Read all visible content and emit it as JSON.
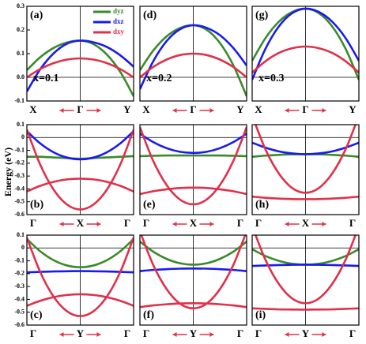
{
  "ylabel": "Energy (eV)",
  "chart_data": [
    {
      "type": "line",
      "panel_label": "(a)",
      "annotation": "x=0.1",
      "legend": "upper right",
      "x": [
        -1,
        -0.75,
        -0.5,
        -0.25,
        0,
        0.25,
        0.5,
        0.75,
        1
      ],
      "xlim": [
        -1,
        1
      ],
      "xticks": [
        {
          "value": -1,
          "label": "X"
        },
        {
          "value": 0,
          "label": "Γ"
        },
        {
          "value": 1,
          "label": "Y"
        }
      ],
      "ylim": [
        -0.1,
        0.3
      ],
      "yticks": [
        0.3,
        0.2,
        0.1,
        {
          "value": 0,
          "label": "0.0"
        },
        -0.1
      ],
      "series": [
        {
          "name": "dyz",
          "color": "#3a8a2a",
          "values": [
            0.03,
            0.085,
            0.124,
            0.147,
            0.155,
            0.14,
            0.096,
            0.023,
            -0.08
          ]
        },
        {
          "name": "dxz",
          "color": "#1a1aee",
          "values": [
            -0.06,
            0.034,
            0.101,
            0.142,
            0.155,
            0.148,
            0.128,
            0.093,
            0.045
          ]
        },
        {
          "name": "dxy",
          "color": "#e0304a",
          "values": [
            0,
            0.035,
            0.06,
            0.075,
            0.08,
            0.075,
            0.06,
            0.035,
            0
          ]
        }
      ]
    },
    {
      "type": "line",
      "panel_label": "(d)",
      "annotation": "x=0.2",
      "x": [
        -1,
        -0.75,
        -0.5,
        -0.25,
        0,
        0.25,
        0.5,
        0.75,
        1
      ],
      "xlim": [
        -1,
        1
      ],
      "xticks": [
        {
          "value": -1,
          "label": "X"
        },
        {
          "value": 0,
          "label": "Γ"
        },
        {
          "value": 1,
          "label": "Y"
        }
      ],
      "ylim": [
        -0.1,
        0.3
      ],
      "series": [
        {
          "name": "dyz",
          "color": "#3a8a2a",
          "values": [
            0.03,
            0.113,
            0.173,
            0.208,
            0.22,
            0.201,
            0.145,
            0.051,
            -0.08
          ]
        },
        {
          "name": "dxz",
          "color": "#1a1aee",
          "values": [
            -0.05,
            0.068,
            0.153,
            0.203,
            0.22,
            0.209,
            0.178,
            0.124,
            0.05
          ]
        },
        {
          "name": "dxy",
          "color": "#e0304a",
          "values": [
            0,
            0.044,
            0.075,
            0.094,
            0.1,
            0.094,
            0.075,
            0.044,
            0
          ]
        }
      ]
    },
    {
      "type": "line",
      "panel_label": "(g)",
      "annotation": "x=0.3",
      "x": [
        -1,
        -0.75,
        -0.5,
        -0.25,
        0,
        0.25,
        0.5,
        0.75,
        1
      ],
      "xlim": [
        -1,
        1
      ],
      "xticks": [
        {
          "value": -1,
          "label": "X"
        },
        {
          "value": 0,
          "label": "Γ"
        },
        {
          "value": 1,
          "label": "Y"
        }
      ],
      "ylim": [
        -0.1,
        0.3
      ],
      "series": [
        {
          "name": "dyz",
          "color": "#3a8a2a",
          "values": [
            0.07,
            0.166,
            0.235,
            0.276,
            0.29,
            0.271,
            0.215,
            0.121,
            -0.01
          ]
        },
        {
          "name": "dxz",
          "color": "#1a1aee",
          "values": [
            -0.01,
            0.121,
            0.215,
            0.271,
            0.29,
            0.276,
            0.235,
            0.166,
            0.07
          ]
        },
        {
          "name": "dxy",
          "color": "#e0304a",
          "values": [
            0.02,
            0.068,
            0.103,
            0.123,
            0.13,
            0.123,
            0.103,
            0.068,
            0.02
          ]
        }
      ]
    },
    {
      "type": "line",
      "panel_label": "(b)",
      "x": [
        -1,
        -0.75,
        -0.5,
        -0.25,
        0,
        0.25,
        0.5,
        0.75,
        1
      ],
      "xlim": [
        -1,
        1
      ],
      "xticks": [
        {
          "value": -1,
          "label": "Γ"
        },
        {
          "value": 0,
          "label": "X"
        },
        {
          "value": 1,
          "label": "Γ"
        }
      ],
      "ylim": [
        -0.6,
        0.1
      ],
      "yticks": [
        0.1,
        0,
        -0.1,
        -0.2,
        -0.3,
        -0.4,
        -0.5,
        -0.6
      ],
      "series": [
        {
          "name": "dyz",
          "color": "#3a8a2a",
          "values": [
            -0.15,
            -0.15,
            -0.155,
            -0.16,
            -0.165,
            -0.16,
            -0.155,
            -0.15,
            -0.145
          ]
        },
        {
          "name": "dxz",
          "color": "#1a1aee",
          "values": [
            0.05,
            -0.046,
            -0.115,
            -0.156,
            -0.17,
            -0.156,
            -0.115,
            -0.046,
            0.05
          ]
        },
        {
          "name": "dxy",
          "color": "#e0304a",
          "values": [
            -0.42,
            -0.376,
            -0.345,
            -0.326,
            -0.32,
            -0.326,
            -0.345,
            -0.376,
            -0.42
          ]
        },
        {
          "name": "dxy",
          "color": "#e0304a",
          "values": [
            0.06,
            -0.211,
            -0.405,
            -0.521,
            -0.56,
            -0.521,
            -0.405,
            -0.211,
            0.06
          ]
        }
      ]
    },
    {
      "type": "line",
      "panel_label": "(e)",
      "x": [
        -1,
        -0.75,
        -0.5,
        -0.25,
        0,
        0.25,
        0.5,
        0.75,
        1
      ],
      "xlim": [
        -1,
        1
      ],
      "xticks": [
        {
          "value": -1,
          "label": "Γ"
        },
        {
          "value": 0,
          "label": "X"
        },
        {
          "value": 1,
          "label": "Γ"
        }
      ],
      "ylim": [
        -0.6,
        0.1
      ],
      "series": [
        {
          "name": "dyz",
          "color": "#3a8a2a",
          "values": [
            -0.145,
            -0.142,
            -0.14,
            -0.14,
            -0.14,
            -0.14,
            -0.14,
            -0.142,
            -0.145
          ]
        },
        {
          "name": "dxz",
          "color": "#1a1aee",
          "values": [
            0.03,
            -0.036,
            -0.083,
            -0.111,
            -0.12,
            -0.111,
            -0.083,
            -0.036,
            0.03
          ]
        },
        {
          "name": "dxy",
          "color": "#e0304a",
          "values": [
            -0.44,
            -0.418,
            -0.403,
            -0.393,
            -0.39,
            -0.393,
            -0.403,
            -0.418,
            -0.44
          ]
        },
        {
          "name": "dxy",
          "color": "#e0304a",
          "values": [
            0.08,
            -0.183,
            -0.37,
            -0.483,
            -0.52,
            -0.483,
            -0.37,
            -0.183,
            0.08
          ]
        }
      ]
    },
    {
      "type": "line",
      "panel_label": "(h)",
      "x": [
        -1,
        -0.75,
        -0.5,
        -0.25,
        0,
        0.25,
        0.5,
        0.75,
        1
      ],
      "xlim": [
        -1,
        1
      ],
      "xticks": [
        {
          "value": -1,
          "label": "Γ"
        },
        {
          "value": 0,
          "label": "X"
        },
        {
          "value": 1,
          "label": "Γ"
        }
      ],
      "ylim": [
        -0.6,
        0.1
      ],
      "series": [
        {
          "name": "dyz",
          "color": "#3a8a2a",
          "values": [
            -0.15,
            -0.141,
            -0.135,
            -0.131,
            -0.13,
            -0.131,
            -0.135,
            -0.141,
            -0.15
          ]
        },
        {
          "name": "dxz",
          "color": "#1a1aee",
          "values": [
            -0.04,
            -0.079,
            -0.108,
            -0.124,
            -0.13,
            -0.124,
            -0.108,
            -0.079,
            -0.04
          ]
        },
        {
          "name": "dxy",
          "color": "#e0304a",
          "values": [
            -0.46,
            -0.469,
            -0.475,
            -0.479,
            -0.48,
            -0.479,
            -0.475,
            -0.469,
            -0.46
          ]
        },
        {
          "name": "dxy",
          "color": "#e0304a",
          "values": [
            0.17,
            -0.093,
            -0.28,
            -0.393,
            -0.43,
            -0.393,
            -0.28,
            -0.093,
            0.17
          ]
        }
      ]
    },
    {
      "type": "line",
      "panel_label": "(c)",
      "x": [
        -1,
        -0.75,
        -0.5,
        -0.25,
        0,
        0.25,
        0.5,
        0.75,
        1
      ],
      "xlim": [
        -1,
        1
      ],
      "xticks": [
        {
          "value": -1,
          "label": "Γ"
        },
        {
          "value": 0,
          "label": "Y"
        },
        {
          "value": 1,
          "label": "Γ"
        }
      ],
      "ylim": [
        -0.6,
        0.1
      ],
      "yticks": [
        0.1,
        0,
        -0.1,
        -0.2,
        -0.3,
        -0.4,
        -0.5,
        -0.6
      ],
      "series": [
        {
          "name": "dyz",
          "color": "#3a8a2a",
          "values": [
            0.07,
            -0.026,
            -0.095,
            -0.136,
            -0.15,
            -0.136,
            -0.095,
            -0.026,
            0.07
          ]
        },
        {
          "name": "dxz",
          "color": "#1a1aee",
          "values": [
            -0.19,
            -0.186,
            -0.183,
            -0.181,
            -0.18,
            -0.181,
            -0.183,
            -0.186,
            -0.19
          ]
        },
        {
          "name": "dxy",
          "color": "#e0304a",
          "values": [
            -0.45,
            -0.411,
            -0.383,
            -0.366,
            -0.36,
            -0.366,
            -0.383,
            -0.411,
            -0.45
          ]
        },
        {
          "name": "dxy",
          "color": "#e0304a",
          "values": [
            0.08,
            -0.187,
            -0.378,
            -0.492,
            -0.53,
            -0.492,
            -0.378,
            -0.187,
            0.08
          ]
        }
      ]
    },
    {
      "type": "line",
      "panel_label": "(f)",
      "x": [
        -1,
        -0.75,
        -0.5,
        -0.25,
        0,
        0.25,
        0.5,
        0.75,
        1
      ],
      "xlim": [
        -1,
        1
      ],
      "xticks": [
        {
          "value": -1,
          "label": "Γ"
        },
        {
          "value": 0,
          "label": "Y"
        },
        {
          "value": 1,
          "label": "Γ"
        }
      ],
      "ylim": [
        -0.6,
        0.1
      ],
      "series": [
        {
          "name": "dyz",
          "color": "#3a8a2a",
          "values": [
            0.05,
            -0.029,
            -0.085,
            -0.119,
            -0.13,
            -0.119,
            -0.085,
            -0.029,
            0.05
          ]
        },
        {
          "name": "dxz",
          "color": "#1a1aee",
          "values": [
            -0.18,
            -0.171,
            -0.165,
            -0.161,
            -0.16,
            -0.161,
            -0.165,
            -0.171,
            -0.18
          ]
        },
        {
          "name": "dxy",
          "color": "#e0304a",
          "values": [
            -0.46,
            -0.447,
            -0.438,
            -0.432,
            -0.43,
            -0.432,
            -0.438,
            -0.447,
            -0.46
          ]
        },
        {
          "name": "dxy",
          "color": "#e0304a",
          "values": [
            0.13,
            -0.133,
            -0.32,
            -0.433,
            -0.47,
            -0.433,
            -0.32,
            -0.133,
            0.13
          ]
        }
      ]
    },
    {
      "type": "line",
      "panel_label": "(i)",
      "x": [
        -1,
        -0.75,
        -0.5,
        -0.25,
        0,
        0.25,
        0.5,
        0.75,
        1
      ],
      "xlim": [
        -1,
        1
      ],
      "xticks": [
        {
          "value": -1,
          "label": "Γ"
        },
        {
          "value": 0,
          "label": "Y"
        },
        {
          "value": 1,
          "label": "Γ"
        }
      ],
      "ylim": [
        -0.6,
        0.1
      ],
      "series": [
        {
          "name": "dyz",
          "color": "#3a8a2a",
          "values": [
            -0.01,
            -0.063,
            -0.1,
            -0.123,
            -0.13,
            -0.123,
            -0.1,
            -0.063,
            -0.01
          ]
        },
        {
          "name": "dxz",
          "color": "#1a1aee",
          "values": [
            -0.14,
            -0.136,
            -0.133,
            -0.131,
            -0.13,
            -0.131,
            -0.133,
            -0.136,
            -0.14
          ]
        },
        {
          "name": "dxy",
          "color": "#e0304a",
          "values": [
            -0.47,
            -0.474,
            -0.478,
            -0.479,
            -0.48,
            -0.479,
            -0.478,
            -0.474,
            -0.47
          ]
        },
        {
          "name": "dxy",
          "color": "#e0304a",
          "values": [
            0.17,
            -0.093,
            -0.28,
            -0.393,
            -0.43,
            -0.393,
            -0.28,
            -0.093,
            0.17
          ]
        }
      ]
    }
  ]
}
